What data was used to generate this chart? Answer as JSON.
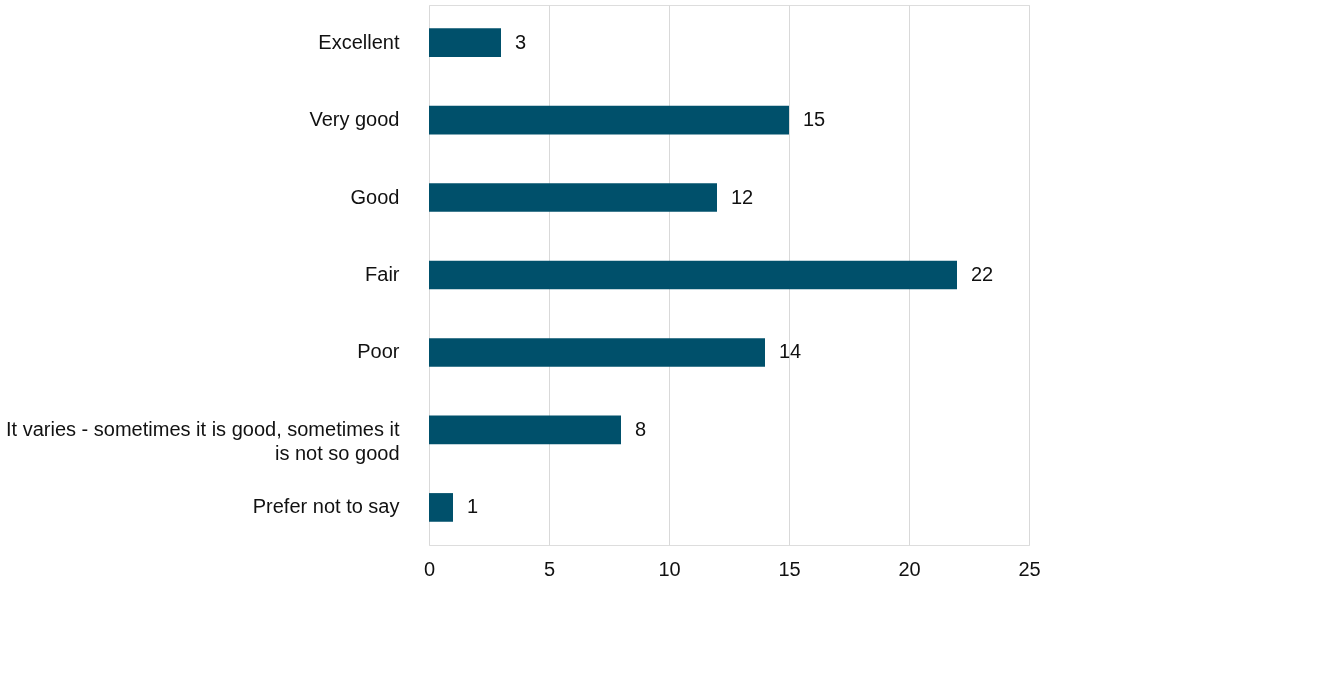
{
  "chart_data": {
    "type": "bar",
    "orientation": "horizontal",
    "categories": [
      "Excellent",
      "Very good",
      "Good",
      "Fair",
      "Poor",
      "It varies - sometimes it is good, sometimes it is not so good",
      "Prefer not to say"
    ],
    "values": [
      3,
      15,
      12,
      22,
      14,
      8,
      1
    ],
    "color": "#00506b",
    "xlim": [
      0,
      25
    ],
    "xticks": [
      0,
      5,
      10,
      15,
      20,
      25
    ],
    "grid": "x",
    "data_labels": true
  }
}
